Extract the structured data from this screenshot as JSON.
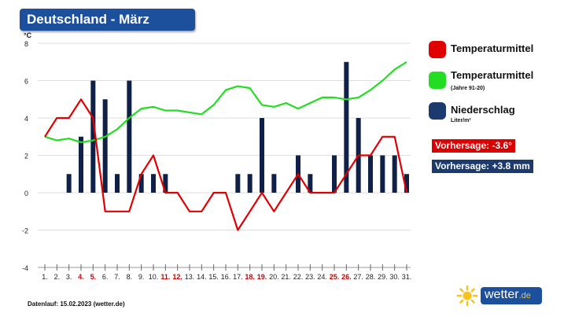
{
  "title": "Deutschland - März",
  "chart_data": {
    "type": "bar+line",
    "title": "Deutschland - März",
    "ylabel": "°C",
    "ylim": [
      -4,
      8
    ],
    "yticks": [
      -4,
      -2,
      0,
      2,
      4,
      6,
      8
    ],
    "categories": [
      "1.",
      "2.",
      "3.",
      "4.",
      "5.",
      "6.",
      "7.",
      "8.",
      "9.",
      "10.",
      "11.",
      "12.",
      "13.",
      "14.",
      "15.",
      "16.",
      "17.",
      "18.",
      "19.",
      "20.",
      "21.",
      "22.",
      "23.",
      "24.",
      "25.",
      "26.",
      "27.",
      "28.",
      "29.",
      "30.",
      "31."
    ],
    "highlight_days": [
      "4.",
      "5.",
      "11.",
      "12.",
      "18.",
      "19.",
      "25.",
      "26."
    ],
    "series": [
      {
        "name": "Temperaturmittel",
        "kind": "line",
        "color": "#e00000",
        "values": [
          3,
          4,
          4,
          5,
          4,
          -1,
          -1,
          -1,
          1,
          2,
          0,
          0,
          -1,
          -1,
          0,
          0,
          -2,
          -1,
          0,
          -1,
          0,
          1,
          0,
          0,
          0,
          1,
          2,
          2,
          3,
          3,
          0
        ]
      },
      {
        "name": "Temperaturmittel (Jahre 91-20)",
        "kind": "line",
        "color": "#22dd22",
        "values": [
          3,
          2.8,
          2.9,
          2.7,
          2.8,
          3.0,
          3.4,
          4.0,
          4.5,
          4.6,
          4.4,
          4.4,
          4.3,
          4.2,
          4.7,
          5.5,
          5.7,
          5.6,
          4.7,
          4.6,
          4.8,
          4.5,
          4.8,
          5.1,
          5.1,
          5.0,
          5.1,
          5.5,
          6.0,
          6.6,
          7.0
        ]
      },
      {
        "name": "Niederschlag",
        "kind": "bar",
        "unit": "Liter/m²",
        "color": "#0f2147",
        "values": [
          0,
          0,
          1,
          3,
          6,
          5,
          1,
          6,
          1,
          1,
          1,
          0,
          0,
          0,
          0,
          0,
          1,
          1,
          4,
          1,
          0,
          2,
          1,
          0,
          2,
          7,
          4,
          2,
          2,
          2,
          1
        ]
      }
    ]
  },
  "legend": {
    "temp": "Temperaturmittel",
    "temp_normal": "Temperaturmittel",
    "temp_normal_sub": "(Jahre 91-20)",
    "precip": "Niederschlag",
    "precip_sub": "Liter/m²"
  },
  "forecast": {
    "temp": "Vorhersage: -3.6°",
    "precip": "Vorhersage: +3.8 mm"
  },
  "colors": {
    "temp": "#e00000",
    "normal": "#22dd22",
    "precip": "#1c3a6e",
    "brand": "#1c4f9c"
  },
  "footer": "Datenlauf: 15.02.2023 (wetter.de)",
  "brand": {
    "name": "wetter",
    "tld": ".de"
  }
}
